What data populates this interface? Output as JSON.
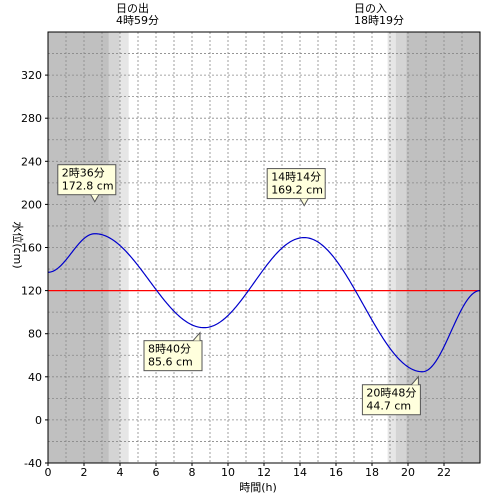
{
  "chart_data": {
    "type": "line",
    "xlabel": "時間(h)",
    "ylabel": "水位(cm)",
    "xlim": [
      0,
      24
    ],
    "ylim": [
      -40,
      360
    ],
    "xticks": [
      0,
      2,
      4,
      6,
      8,
      10,
      12,
      14,
      16,
      18,
      20,
      22
    ],
    "yticks": [
      -40,
      0,
      40,
      80,
      120,
      160,
      200,
      240,
      280,
      320
    ],
    "grid": true,
    "reference_level": 120,
    "sunrise": {
      "label": "日の出",
      "time": "4時59分",
      "hour": 4.983
    },
    "sunset": {
      "label": "日の入",
      "time": "18時19分",
      "hour": 18.317
    },
    "series": [
      {
        "color": "#0000cc",
        "points": [
          [
            0,
            137
          ],
          [
            2.6,
            172.8
          ],
          [
            8.667,
            85.6
          ],
          [
            14.233,
            169.2
          ],
          [
            20.8,
            44.7
          ],
          [
            24,
            120
          ]
        ]
      }
    ],
    "annotations": [
      {
        "time": "2時36分",
        "level": "172.8 cm",
        "hour": 2.6,
        "value": 172.8,
        "side": "above"
      },
      {
        "time": "8時40分",
        "level": "85.6 cm",
        "hour": 8.667,
        "value": 85.6,
        "side": "below"
      },
      {
        "time": "14時14分",
        "level": "169.2 cm",
        "hour": 14.233,
        "value": 169.2,
        "side": "above"
      },
      {
        "time": "20時48分",
        "level": "44.7 cm",
        "hour": 20.8,
        "value": 44.7,
        "side": "below"
      }
    ],
    "colors": {
      "line": "#0000cc",
      "reference": "#ff0000",
      "night": "#c0c0c0",
      "twilight1": "#d4d4d4",
      "twilight2": "#e6e6e6"
    }
  }
}
